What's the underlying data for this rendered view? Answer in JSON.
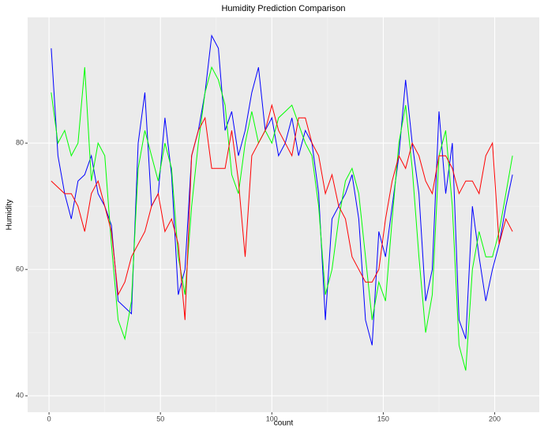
{
  "chart_data": {
    "type": "line",
    "title": "Humidity Prediction Comparison",
    "x_label": "count",
    "y_label": "Humidity",
    "x": [
      1,
      4,
      7,
      10,
      13,
      16,
      19,
      22,
      25,
      28,
      31,
      34,
      37,
      40,
      43,
      46,
      49,
      52,
      55,
      58,
      61,
      64,
      67,
      70,
      73,
      76,
      79,
      82,
      85,
      88,
      91,
      94,
      97,
      100,
      103,
      106,
      109,
      112,
      115,
      118,
      121,
      124,
      127,
      130,
      133,
      136,
      139,
      142,
      145,
      148,
      151,
      154,
      157,
      160,
      163,
      166,
      169,
      172,
      175,
      178,
      181,
      184,
      187,
      190,
      193,
      196,
      199,
      202,
      205,
      208
    ],
    "series": [
      {
        "color": "#0000ff",
        "values": [
          95,
          78,
          72,
          68,
          74,
          75,
          78,
          72,
          70,
          67,
          55,
          54,
          53,
          80,
          88,
          70,
          72,
          84,
          75,
          56,
          60,
          78,
          82,
          88,
          97,
          95,
          82,
          85,
          78,
          82,
          88,
          92,
          82,
          84,
          78,
          80,
          84,
          78,
          82,
          80,
          72,
          52,
          68,
          70,
          72,
          75,
          68,
          52,
          48,
          66,
          62,
          70,
          78,
          90,
          80,
          72,
          55,
          60,
          85,
          72,
          80,
          52,
          49,
          70,
          62,
          55,
          60,
          64,
          70,
          75
        ]
      },
      {
        "color": "#00ff00",
        "values": [
          88,
          80,
          82,
          78,
          80,
          92,
          74,
          80,
          78,
          64,
          52,
          49,
          55,
          76,
          82,
          78,
          74,
          80,
          76,
          62,
          56,
          70,
          80,
          88,
          92,
          90,
          86,
          75,
          72,
          80,
          85,
          80,
          82,
          80,
          84,
          85,
          86,
          83,
          80,
          78,
          70,
          56,
          60,
          68,
          74,
          76,
          72,
          62,
          52,
          58,
          55,
          68,
          80,
          86,
          76,
          62,
          50,
          56,
          78,
          82,
          70,
          48,
          44,
          60,
          66,
          62,
          62,
          66,
          72,
          78
        ]
      },
      {
        "color": "#ff0000",
        "values": [
          74,
          73,
          72,
          72,
          70,
          66,
          72,
          74,
          70,
          66,
          56,
          58,
          62,
          64,
          66,
          70,
          72,
          66,
          68,
          64,
          52,
          78,
          82,
          84,
          76,
          76,
          76,
          82,
          74,
          62,
          78,
          80,
          82,
          86,
          82,
          80,
          78,
          84,
          84,
          80,
          78,
          72,
          75,
          70,
          68,
          62,
          60,
          58,
          58,
          60,
          68,
          74,
          78,
          76,
          80,
          78,
          74,
          72,
          78,
          78,
          76,
          72,
          74,
          74,
          72,
          78,
          80,
          64,
          68,
          66
        ]
      }
    ],
    "xlim": [
      -9.6,
      220
    ],
    "ylim": [
      37.4,
      99.9
    ],
    "xticks": [
      0,
      50,
      100,
      150,
      200
    ],
    "yticks": [
      40,
      60,
      80
    ],
    "grid": true
  }
}
